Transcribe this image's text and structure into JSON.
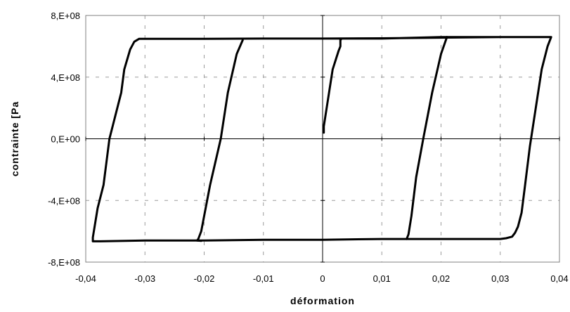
{
  "chart_data": {
    "type": "line",
    "title": "",
    "xlabel": "déformation",
    "ylabel": "contrainte [Pa",
    "xlim": [
      -0.04,
      0.04
    ],
    "ylim": [
      -800000000,
      800000000
    ],
    "x_ticks": [
      -0.04,
      -0.03,
      -0.02,
      -0.01,
      0,
      0.01,
      0.02,
      0.03,
      0.04
    ],
    "x_tick_labels": [
      "-0,04",
      "-0,03",
      "-0,02",
      "-0,01",
      "0",
      "0,01",
      "0,02",
      "0,03",
      "0,04"
    ],
    "y_ticks": [
      -800000000,
      -400000000,
      0,
      400000000,
      800000000
    ],
    "y_tick_labels": [
      "-8,E+08",
      "-4,E+08",
      "0,E+00",
      "4,E+08",
      "8,E+08"
    ],
    "grid": "dashed",
    "legend": "none",
    "line_color": "#000000",
    "series": [
      {
        "x": [
          0.0002,
          0.0002,
          0.0017,
          0.0027,
          0.003,
          0.003,
          0.0032,
          0.01,
          0.02,
          0.03,
          0.0386,
          0.038,
          0.037,
          0.036,
          0.035,
          0.0342,
          0.0336,
          0.033,
          0.0325,
          0.032,
          0.031,
          0.03,
          0.02,
          0.01,
          0.0,
          -0.01,
          -0.02,
          -0.03,
          -0.0375,
          -0.0388,
          -0.0388,
          -0.038,
          -0.037,
          -0.0365,
          -0.036,
          -0.035,
          -0.034,
          -0.0335,
          -0.0325,
          -0.0318,
          -0.031,
          -0.02,
          -0.01,
          0.0,
          0.01,
          0.02,
          0.03,
          0.0386
        ],
        "y": [
          40000000,
          80000000,
          450000000,
          570000000,
          600000000,
          640000000,
          650000000,
          650000000,
          660000000,
          660000000,
          660000000,
          600000000,
          450000000,
          200000000,
          -50000000,
          -300000000,
          -480000000,
          -570000000,
          -610000000,
          -635000000,
          -645000000,
          -650000000,
          -650000000,
          -650000000,
          -655000000,
          -655000000,
          -660000000,
          -660000000,
          -665000000,
          -665000000,
          -640000000,
          -450000000,
          -300000000,
          -150000000,
          0,
          150000000,
          300000000,
          450000000,
          580000000,
          630000000,
          648000000,
          648000000,
          650000000,
          650000000,
          652000000,
          656000000,
          660000000,
          660000000
        ]
      },
      {
        "x": [
          -0.0135,
          -0.0145,
          -0.016,
          -0.0172,
          -0.019,
          -0.0205,
          -0.021,
          -0.0212,
          -0.0205
        ],
        "y": [
          640000000,
          550000000,
          300000000,
          0,
          -300000000,
          -600000000,
          -650000000,
          -660000000,
          -662000000
        ]
      },
      {
        "x": [
          0.021,
          0.02,
          0.0185,
          0.017,
          0.0158,
          0.015,
          0.0145,
          0.0142
        ],
        "y": [
          660000000,
          550000000,
          300000000,
          0,
          -250000000,
          -500000000,
          -620000000,
          -650000000
        ]
      }
    ]
  }
}
